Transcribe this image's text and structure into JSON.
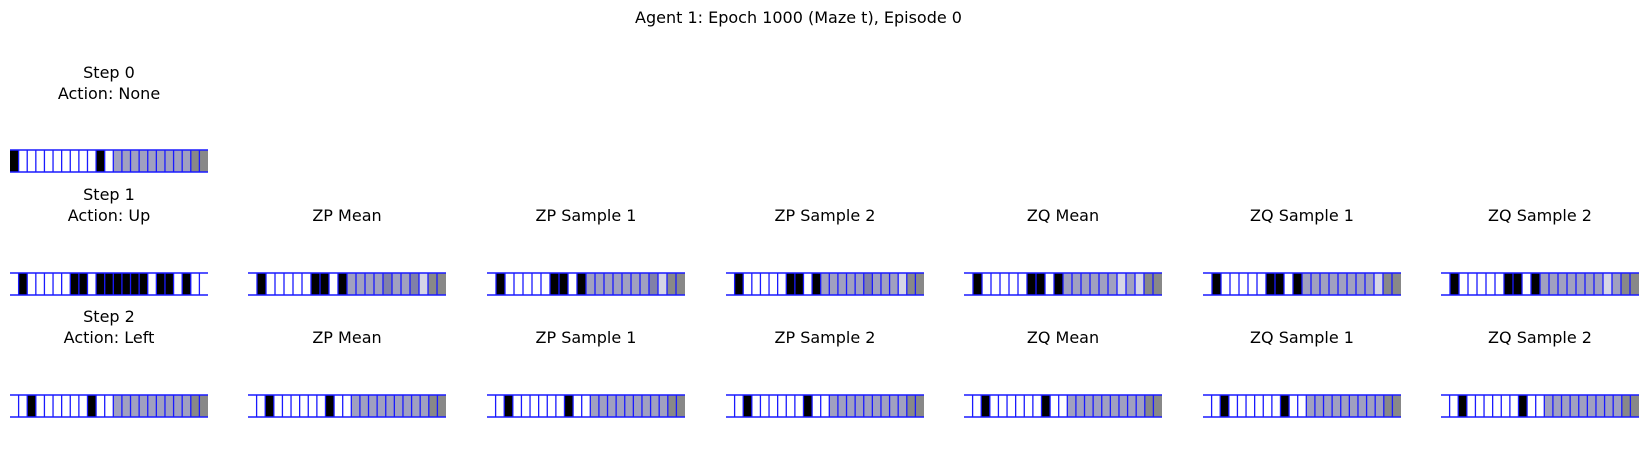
{
  "figure_title": "Agent 1: Epoch 1000 (Maze t), Episode 0",
  "colors": {
    "black": "#000000",
    "white": "#ffffff",
    "light": "#d6d6e6",
    "mid": "#a0a0c0",
    "dark_mid": "#8080a8",
    "gray": "#888888",
    "grid_line": "#1a1aff"
  },
  "rows": [
    {
      "step_label": "Step 0",
      "action_label": "Action: None",
      "panels": [
        {
          "title": "",
          "cells": "KWWWWWWWWWKWMMMMMMMMMGG"
        }
      ]
    },
    {
      "step_label": "Step 1",
      "action_label": "Action: Up",
      "panels": [
        {
          "title": "",
          "cells": "WKWWWWWKKWKKKKKKWKKWKWW"
        },
        {
          "title": "ZP Mean",
          "cells": "WKWWWWWKKWKMMMMDMMDLGG"
        },
        {
          "title": "ZP Sample 1",
          "cells": "WKWWWWWKKWKMMMMMMMDLGG"
        },
        {
          "title": "ZP Sample 2",
          "cells": "WKWWWWWKKWKMMMMMDMMMLGG"
        },
        {
          "title": "ZQ Mean",
          "cells": "WKWWWWWKKWKMMMMMMLMLGG"
        },
        {
          "title": "ZQ Sample 1",
          "cells": "WKWWWWWKKWKMMMMMMMMLGG"
        },
        {
          "title": "ZQ Sample 2",
          "cells": "WKWWWWWKKWKMMMMMMMLMGG"
        }
      ]
    },
    {
      "step_label": "Step 2",
      "action_label": "Action: Left",
      "panels": [
        {
          "title": "",
          "cells": "WWKWWWWWWKWWMMMMMMMMMGG"
        },
        {
          "title": "ZP Mean",
          "cells": "WWKWWWWWWKWWMMMMMMMMMGG"
        },
        {
          "title": "ZP Sample 1",
          "cells": "WWKWWWWWWKWWMMMMMMMMMGG"
        },
        {
          "title": "ZP Sample 2",
          "cells": "WWKWWWWWWKWWMMMMMMMMMGG"
        },
        {
          "title": "ZQ Mean",
          "cells": "WWKWWWWWWKWWMMMMMMMMMGG"
        },
        {
          "title": "ZQ Sample 1",
          "cells": "WWKWWWWWWKWWMMMMMMMMMGG"
        },
        {
          "title": "ZQ Sample 2",
          "cells": "WWKWWWWWWKWWMMMMMMMMMGG"
        }
      ]
    }
  ]
}
